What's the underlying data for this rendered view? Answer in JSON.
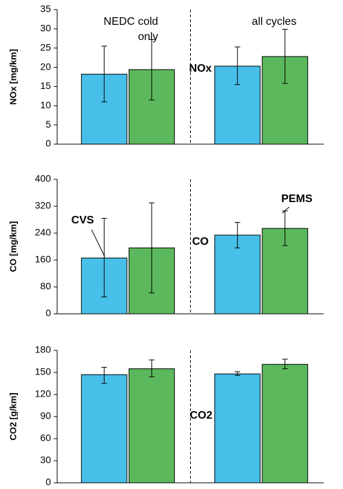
{
  "chart_data": [
    {
      "type": "bar",
      "ylabel": "NOx [mg/km]",
      "categories": [
        null,
        null
      ],
      "series": [
        {
          "color": "#47bfe9",
          "values": [
            18.2,
            20.3
          ],
          "lower": [
            11,
            15.5
          ],
          "upper": [
            25.5,
            25.3
          ]
        },
        {
          "color": "#5cb85c",
          "values": [
            19.4,
            22.8
          ],
          "lower": [
            11.5,
            15.8
          ],
          "upper": [
            27.2,
            29.9
          ]
        }
      ],
      "ylim": [
        0,
        35
      ],
      "yticks": [
        0,
        5,
        10,
        15,
        20,
        25,
        30,
        35
      ],
      "annotations": [
        "NEDC cold",
        "only",
        "all cycles",
        "NOx"
      ]
    },
    {
      "type": "bar",
      "ylabel": "CO [mg/km]",
      "categories": [
        null,
        null
      ],
      "series": [
        {
          "color": "#47bfe9",
          "values": [
            166,
            234
          ],
          "lower": [
            50,
            196
          ],
          "upper": [
            284,
            272
          ]
        },
        {
          "color": "#5cb85c",
          "values": [
            196,
            254
          ],
          "lower": [
            62,
            203
          ],
          "upper": [
            330,
            306
          ]
        }
      ],
      "ylim": [
        0,
        400
      ],
      "yticks": [
        0,
        80,
        160,
        240,
        320,
        400
      ],
      "annotations": [
        "CVS",
        "PEMS",
        "CO"
      ]
    },
    {
      "type": "bar",
      "ylabel": "CO2 [g/km]",
      "categories": [
        null,
        null
      ],
      "series": [
        {
          "color": "#47bfe9",
          "values": [
            147,
            148
          ],
          "lower": [
            135,
            146
          ],
          "upper": [
            157,
            151
          ]
        },
        {
          "color": "#5cb85c",
          "values": [
            155,
            161
          ],
          "lower": [
            144,
            155
          ],
          "upper": [
            167,
            168
          ]
        }
      ],
      "ylim": [
        0,
        180
      ],
      "yticks": [
        0,
        30,
        60,
        90,
        120,
        150,
        180
      ],
      "annotations": [
        "CO2"
      ]
    }
  ]
}
